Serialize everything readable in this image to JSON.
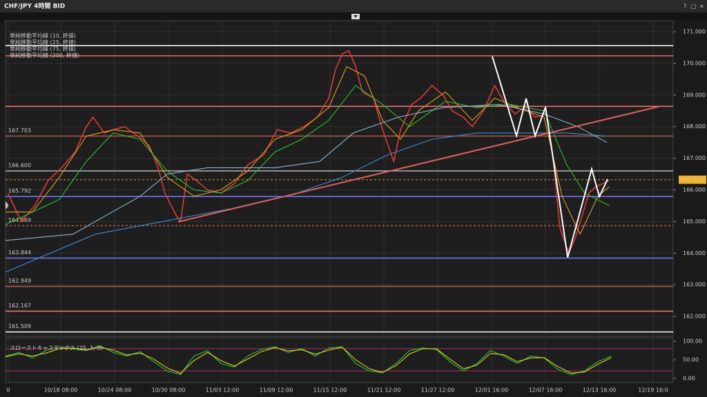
{
  "window": {
    "title": "CHF/JPY 4時間 BID",
    "controls": [
      "?",
      "□",
      "×"
    ]
  },
  "chart_data": [
    {
      "type": "line",
      "xlim": [
        0,
        297.5
      ],
      "ylim": [
        161.37,
        171.35
      ],
      "yticks": [
        {
          "value": 171,
          "label": "171.000"
        },
        {
          "value": 170,
          "label": "170.000"
        },
        {
          "value": 169,
          "label": "169.000"
        },
        {
          "value": 168,
          "label": "168.000"
        },
        {
          "value": 167,
          "label": "167.000"
        },
        {
          "value": 166,
          "label": "166.000"
        },
        {
          "value": 165,
          "label": "165.000"
        },
        {
          "value": 164,
          "label": "164.000"
        },
        {
          "value": 163,
          "label": "163.000"
        },
        {
          "value": 162,
          "label": "162.000"
        }
      ],
      "grid": true,
      "current_price": 166.322,
      "series": [
        {
          "color": "#e03a3a",
          "x": [
            1,
            7,
            13,
            19,
            25,
            31,
            36,
            39,
            44,
            48,
            53,
            59,
            64,
            68,
            71,
            76,
            78,
            81,
            85,
            90,
            96,
            102,
            108,
            115,
            121,
            127,
            133,
            139,
            144,
            147,
            150,
            153,
            156,
            159,
            164,
            168,
            173,
            176,
            181,
            185,
            190,
            195,
            199,
            204,
            208,
            213,
            218,
            222,
            227,
            231,
            236,
            241,
            244,
            247,
            251,
            254,
            257,
            260,
            263,
            266,
            269
          ],
          "values": [
            165.9,
            165.0,
            165.5,
            166.3,
            166.7,
            167.2,
            168.0,
            168.3,
            167.8,
            167.9,
            168.0,
            167.7,
            167.4,
            166.7,
            165.9,
            165.2,
            165.0,
            166.5,
            166.3,
            166.0,
            165.9,
            166.2,
            166.8,
            167.1,
            167.9,
            167.8,
            168.0,
            168.3,
            168.9,
            169.8,
            170.3,
            170.4,
            169.9,
            169.1,
            168.9,
            167.9,
            166.9,
            167.9,
            168.7,
            168.9,
            169.3,
            169.0,
            168.5,
            168.3,
            168.0,
            168.5,
            169.3,
            168.8,
            168.4,
            168.6,
            168.3,
            168.4,
            167.0,
            164.8,
            164.0,
            164.5,
            165.2,
            165.9,
            166.1,
            166.2,
            166.3
          ]
        },
        {
          "name": "単純移動平均線 (10, 終値)",
          "color": "#e0a020",
          "x": [
            0,
            12,
            24,
            36,
            48,
            60,
            72,
            84,
            96,
            108,
            120,
            132,
            144,
            152,
            160,
            168,
            176,
            184,
            196,
            208,
            218,
            228,
            240,
            248,
            256,
            264,
            269
          ],
          "values": [
            165.3,
            165.3,
            166.4,
            167.7,
            167.9,
            167.8,
            166.4,
            165.8,
            166.0,
            166.6,
            167.6,
            167.9,
            168.6,
            169.9,
            169.6,
            168.2,
            167.6,
            168.5,
            169.1,
            168.2,
            168.9,
            168.6,
            168.3,
            165.8,
            164.6,
            165.8,
            166.1
          ]
        },
        {
          "name": "単純移動平均線 (25, 終値)",
          "color": "#2ec02e",
          "x": [
            0,
            24,
            36,
            48,
            60,
            72,
            84,
            96,
            108,
            120,
            132,
            144,
            156,
            168,
            180,
            196,
            210,
            225,
            240,
            250,
            258,
            269
          ],
          "values": [
            164.9,
            165.7,
            166.9,
            167.8,
            167.6,
            166.6,
            166.0,
            165.9,
            166.3,
            167.2,
            167.6,
            168.2,
            169.3,
            168.7,
            168.0,
            168.8,
            168.6,
            168.7,
            168.5,
            166.8,
            165.9,
            165.5
          ]
        },
        {
          "name": "単純移動平均線 (75, 終値)",
          "color": "#8fb4d0",
          "x": [
            0,
            30,
            60,
            72,
            90,
            120,
            140,
            155,
            175,
            195,
            220,
            240,
            255,
            268
          ],
          "values": [
            164.4,
            164.6,
            165.8,
            166.5,
            166.7,
            166.7,
            166.9,
            167.8,
            168.3,
            168.6,
            168.7,
            168.4,
            168.0,
            167.5
          ]
        },
        {
          "name": "単純移動平均線 (200, 終値)",
          "color": "#3a8fd8",
          "x": [
            0,
            40,
            70,
            100,
            130,
            150,
            170,
            190,
            210,
            230,
            250,
            268
          ],
          "values": [
            163.4,
            164.6,
            165.0,
            165.4,
            165.9,
            166.4,
            167.1,
            167.6,
            167.8,
            167.8,
            167.8,
            167.7
          ]
        }
      ],
      "levels": [
        {
          "value": 170.56,
          "color": "#ffffff"
        },
        {
          "value": 170.24,
          "color": "#e06060"
        },
        {
          "value": 168.641,
          "color": "#f07070"
        },
        {
          "value": 167.703,
          "label": "167.703",
          "color": "#b05a4a"
        },
        {
          "value": 166.6,
          "label": "166.600",
          "color": "#aaaaaa"
        },
        {
          "value": 165.792,
          "label": "165.792",
          "color": "#7070f0"
        },
        {
          "value": 164.869,
          "label": "164.869",
          "color": "#b05a4a",
          "dashed": true
        },
        {
          "value": 163.844,
          "label": "163.844",
          "color": "#7070f0"
        },
        {
          "value": 162.949,
          "label": "162.949",
          "color": "#b05a4a"
        },
        {
          "value": 162.167,
          "label": "162.167",
          "color": "#f07070"
        },
        {
          "value": 161.509,
          "label": "161.509",
          "color": "#ffffff"
        }
      ],
      "drawings": [
        {
          "color": "#e06060",
          "x": [
            76.9,
            291.4
          ],
          "values": [
            164.99,
            168.64
          ]
        },
        {
          "color": "#ffffff",
          "x": [
            216.9,
            227.7,
            232,
            236,
            240.6,
            250.5,
            261.2,
            264.6,
            268.3
          ],
          "values": [
            170.22,
            167.71,
            168.89,
            167.71,
            168.62,
            163.87,
            166.66,
            165.79,
            166.34
          ]
        }
      ]
    },
    {
      "type": "line",
      "title": "スローストキャスティクス (25, 3, 3)",
      "xlim": [
        0,
        297.5
      ],
      "ylim": [
        -11.5,
        109.6
      ],
      "yticks": [
        {
          "value": 100,
          "label": "100.00"
        },
        {
          "value": 50,
          "label": "50.00"
        },
        {
          "value": 0,
          "label": "0.00"
        }
      ],
      "bands": [
        80,
        20
      ],
      "xticks": [
        {
          "value": 1.2,
          "label": "0"
        },
        {
          "value": 24.6,
          "label": "10/18 08:00"
        },
        {
          "value": 48.6,
          "label": "10/24 08:00"
        },
        {
          "value": 72.6,
          "label": "10/30 08:00"
        },
        {
          "value": 96.6,
          "label": "11/03 12:00"
        },
        {
          "value": 120.6,
          "label": "11/09 12:00"
        },
        {
          "value": 144.6,
          "label": "11/15 12:00"
        },
        {
          "value": 168.6,
          "label": "11/21 12:00"
        },
        {
          "value": 192.6,
          "label": "11/27 12:00"
        },
        {
          "value": 216.6,
          "label": "12/01 16:00"
        },
        {
          "value": 240.6,
          "label": "12/07 16:00"
        },
        {
          "value": 264.6,
          "label": "12/13 16:00"
        },
        {
          "value": 288.6,
          "label": "12/19 16:0"
        }
      ],
      "series": [
        {
          "color": "#30c040",
          "x": [
            0,
            6,
            12,
            18,
            24,
            30,
            36,
            42,
            48,
            54,
            60,
            66,
            72,
            78,
            84,
            90,
            96,
            102,
            108,
            114,
            120,
            126,
            132,
            138,
            144,
            150,
            156,
            162,
            168,
            174,
            180,
            186,
            192,
            198,
            204,
            210,
            216,
            222,
            228,
            234,
            240,
            246,
            252,
            258,
            264,
            270
          ],
          "values": [
            60,
            70,
            55,
            75,
            85,
            80,
            75,
            88,
            70,
            60,
            72,
            45,
            20,
            10,
            60,
            75,
            40,
            30,
            60,
            78,
            85,
            70,
            80,
            60,
            82,
            85,
            40,
            20,
            15,
            40,
            75,
            82,
            78,
            45,
            20,
            40,
            75,
            60,
            40,
            60,
            55,
            25,
            10,
            20,
            45,
            60
          ]
        },
        {
          "color": "#e0d020",
          "x": [
            0,
            6,
            12,
            18,
            24,
            30,
            36,
            42,
            48,
            54,
            60,
            66,
            72,
            78,
            84,
            90,
            96,
            102,
            108,
            114,
            120,
            126,
            132,
            138,
            144,
            150,
            156,
            162,
            168,
            174,
            180,
            186,
            192,
            198,
            204,
            210,
            216,
            222,
            228,
            234,
            240,
            246,
            252,
            258,
            264,
            270
          ],
          "values": [
            58,
            66,
            60,
            68,
            80,
            82,
            77,
            84,
            76,
            63,
            68,
            52,
            28,
            13,
            48,
            70,
            48,
            33,
            52,
            72,
            83,
            74,
            77,
            65,
            76,
            84,
            50,
            26,
            16,
            34,
            66,
            80,
            80,
            52,
            26,
            35,
            67,
            64,
            45,
            55,
            56,
            32,
            14,
            17,
            38,
            56
          ]
        }
      ]
    }
  ]
}
